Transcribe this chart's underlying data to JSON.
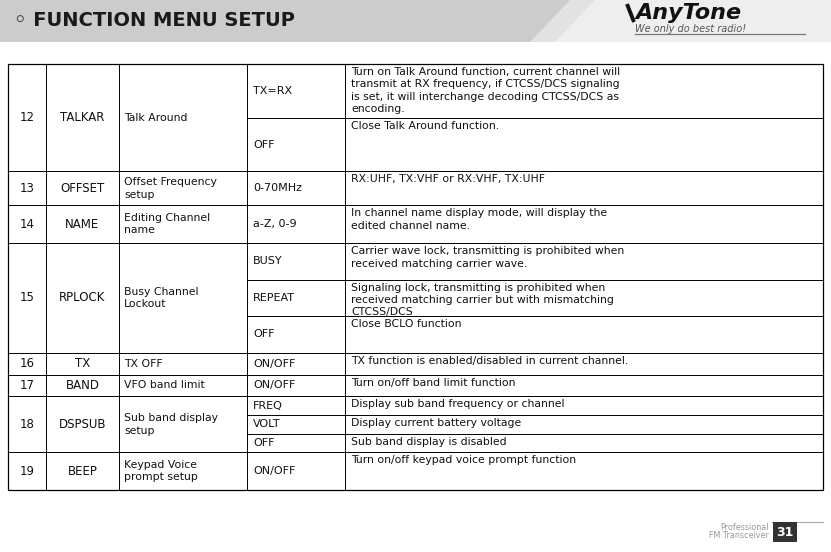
{
  "title": "FUNCTION MENU SETUP",
  "title_bullet": "◦",
  "logo_text": "AnyTone",
  "logo_sub": "We only do best radio!",
  "bg_white": "#ffffff",
  "footer_text1": "Professional",
  "footer_text2": "FM Transceiver",
  "footer_num": "31",
  "rows": [
    {
      "num": "12",
      "code": "TALKAR",
      "desc": "Talk Around",
      "subrows": [
        {
          "option": "TX=RX",
          "detail": "Turn on Talk Around function, current channel will\ntransmit at RX frequency, if CTCSS/DCS signaling\nis set, it will interchange decoding CTCSS/DCS as\nencoding."
        },
        {
          "option": "OFF",
          "detail": "Close Talk Around function."
        }
      ]
    },
    {
      "num": "13",
      "code": "OFFSET",
      "desc": "Offset Frequency\nsetup",
      "subrows": [
        {
          "option": "0-70MHz",
          "detail": "RX:UHF, TX:VHF or RX:VHF, TX:UHF"
        }
      ]
    },
    {
      "num": "14",
      "code": "NAME",
      "desc": "Editing Channel\nname",
      "subrows": [
        {
          "option": "a-Z, 0-9",
          "detail": "In channel name display mode, will display the\nedited channel name."
        }
      ]
    },
    {
      "num": "15",
      "code": "RPLOCK",
      "desc": "Busy Channel\nLockout",
      "subrows": [
        {
          "option": "BUSY",
          "detail": "Carrier wave lock, transmitting is prohibited when\nreceived matching carrier wave."
        },
        {
          "option": "REPEAT",
          "detail": "Signaling lock, transmitting is prohibited when\nreceived matching carrier but with mismatching\nCTCSS/DCS"
        },
        {
          "option": "OFF",
          "detail": "Close BCLO function"
        }
      ]
    },
    {
      "num": "16",
      "code": "TX",
      "desc": "TX OFF",
      "subrows": [
        {
          "option": "ON/OFF",
          "detail": "TX function is enabled/disabled in current channel."
        }
      ]
    },
    {
      "num": "17",
      "code": "BAND",
      "desc": "VFO band limit",
      "subrows": [
        {
          "option": "ON/OFF",
          "detail": "Turn on/off band limit function"
        }
      ]
    },
    {
      "num": "18",
      "code": "DSPSUB",
      "desc": "Sub band display\nsetup",
      "subrows": [
        {
          "option": "FREQ",
          "detail": "Display sub band frequency or channel"
        },
        {
          "option": "VOLT",
          "detail": "Display current battery voltage"
        },
        {
          "option": "OFF",
          "detail": "Sub band display is disabled"
        }
      ]
    },
    {
      "num": "19",
      "code": "BEEP",
      "desc": "Keypad Voice\nprompt setup",
      "subrows": [
        {
          "option": "ON/OFF",
          "detail": "Turn on/off keypad voice prompt function"
        }
      ]
    }
  ]
}
